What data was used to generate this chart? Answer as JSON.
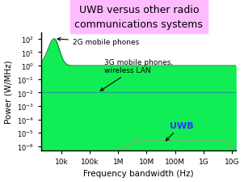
{
  "title": "UWB versus other radio\ncommunications systems",
  "title_bg": "#ffbbff",
  "xlabel": "Frequency bandwidth (Hz)",
  "ylabel": "Power (W/MHz)",
  "xlim_log": [
    3.3,
    10.15
  ],
  "ylim_log": [
    -6.3,
    2.5
  ],
  "xtick_positions": [
    4,
    5,
    6,
    7,
    8,
    9,
    10
  ],
  "xtick_labels": [
    "10k",
    "100k",
    "1M",
    "10M",
    "100M",
    "1G",
    "10G"
  ],
  "ytick_positions": [
    -6,
    -5,
    -4,
    -3,
    -2,
    -1,
    0,
    1,
    2
  ],
  "ytick_labels": [
    "10$^{-6}$",
    "10$^{-5}$",
    "10$^{-4}$",
    "10$^{-3}$",
    "10$^{-2}$",
    "10$^{-1}$",
    "10$^{0}$",
    "10$^{1}$",
    "10$^{2}$"
  ],
  "2g_color": "#11ee55",
  "2g_edge": "#008822",
  "3g_color": "#44ddee",
  "3g_edge": "#229999",
  "uwb_color": "#ffbbbb",
  "uwb_edge": "#bb8888",
  "annotation_2g_text": "2G mobile phones",
  "annotation_3g_text": "3G mobile phones,\nwireless LAN",
  "annotation_uwb_text": "UWB",
  "uwb_text_color": "#3333ff",
  "background_color": "#ffffff",
  "spine_color": "#333333"
}
